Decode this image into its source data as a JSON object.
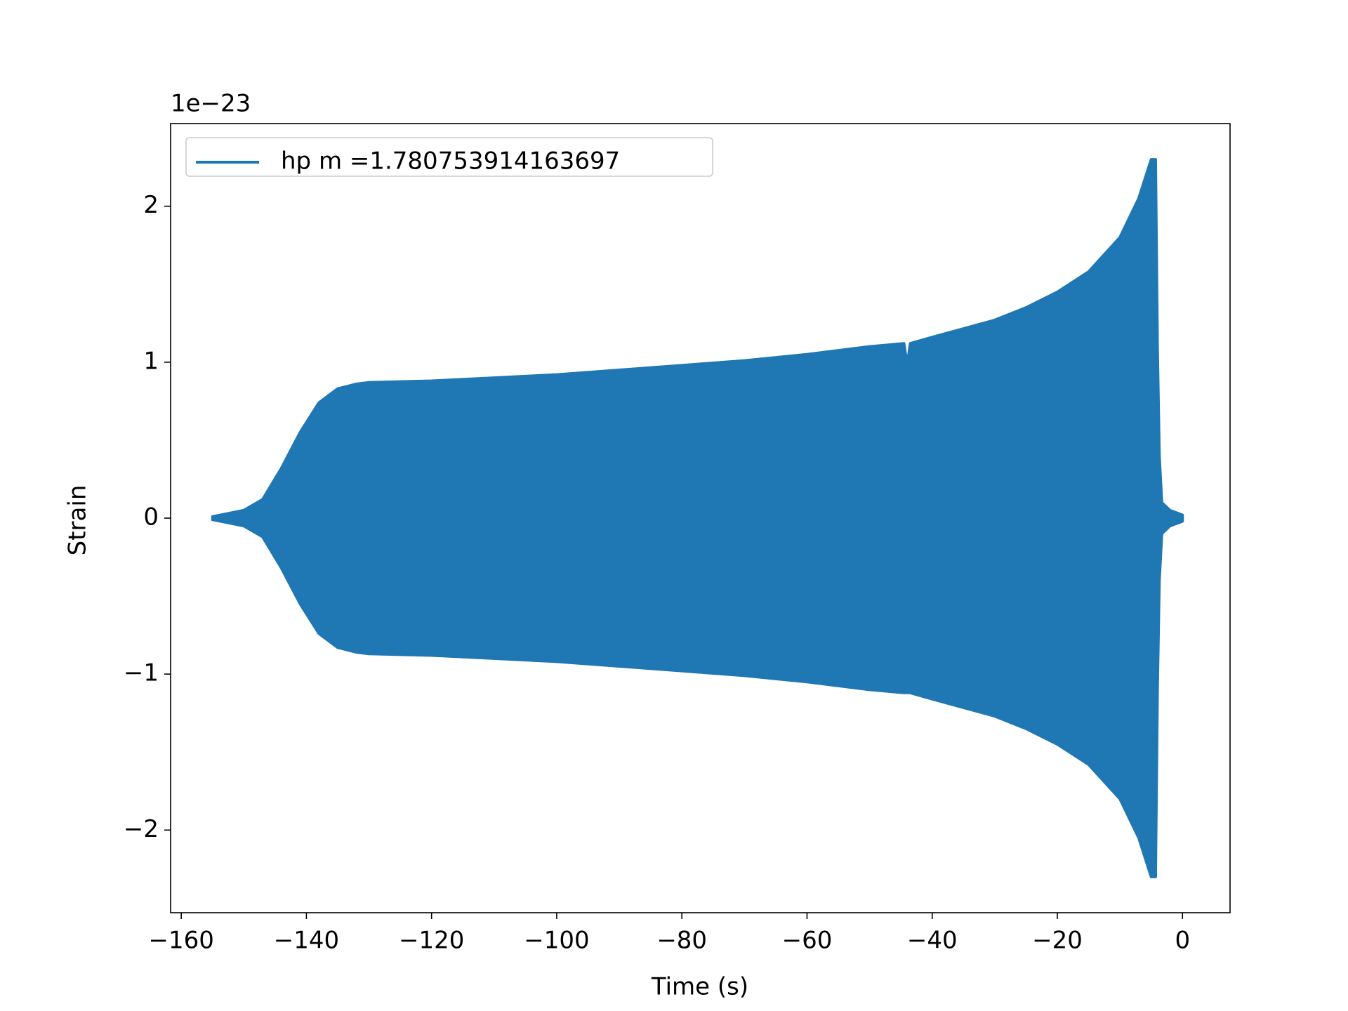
{
  "chart_data": {
    "type": "area",
    "offset_label": "1e−23",
    "xlabel": "Time (s)",
    "ylabel": "Strain",
    "series": [
      {
        "name": "hp m =1.780753914163697",
        "color": "#1f77b4",
        "x": [
          -155,
          -150,
          -147,
          -144,
          -141,
          -138,
          -135,
          -132,
          -130,
          -120,
          -110,
          -100,
          -90,
          -80,
          -70,
          -60,
          -50,
          -44.5,
          -44,
          -43.5,
          -40,
          -30,
          -25,
          -20,
          -15,
          -10,
          -7,
          -5,
          -4.3,
          -4,
          -3.7,
          -3.3,
          -2,
          0
        ],
        "values": [
          0.01,
          0.05,
          0.12,
          0.32,
          0.55,
          0.74,
          0.83,
          0.86,
          0.87,
          0.88,
          0.9,
          0.92,
          0.95,
          0.98,
          1.01,
          1.05,
          1.1,
          1.12,
          0.98,
          1.12,
          1.16,
          1.27,
          1.35,
          1.45,
          1.58,
          1.8,
          2.05,
          2.3,
          2.3,
          1.1,
          0.4,
          0.1,
          0.05,
          0.02
        ],
        "lower": [
          -0.01,
          -0.05,
          -0.12,
          -0.32,
          -0.55,
          -0.74,
          -0.83,
          -0.86,
          -0.87,
          -0.88,
          -0.9,
          -0.92,
          -0.95,
          -0.98,
          -1.01,
          -1.05,
          -1.1,
          -1.12,
          -1.12,
          -1.12,
          -1.16,
          -1.27,
          -1.35,
          -1.45,
          -1.58,
          -1.8,
          -2.05,
          -2.3,
          -2.3,
          -1.1,
          -0.4,
          -0.1,
          -0.05,
          -0.02
        ]
      }
    ],
    "xlim": [
      -161.7,
      7.6
    ],
    "ylim": [
      -2.53,
      2.53
    ],
    "xticks": [
      {
        "value": -160,
        "label": "−160"
      },
      {
        "value": -140,
        "label": "−140"
      },
      {
        "value": -120,
        "label": "−120"
      },
      {
        "value": -100,
        "label": "−100"
      },
      {
        "value": -80,
        "label": "−80"
      },
      {
        "value": -60,
        "label": "−60"
      },
      {
        "value": -40,
        "label": "−40"
      },
      {
        "value": -20,
        "label": "−20"
      },
      0
    ],
    "yticks": [
      {
        "value": -2,
        "label": "−2"
      },
      {
        "value": -1,
        "label": "−1"
      },
      0,
      1,
      2
    ],
    "legend": "upper left",
    "grid": false
  }
}
